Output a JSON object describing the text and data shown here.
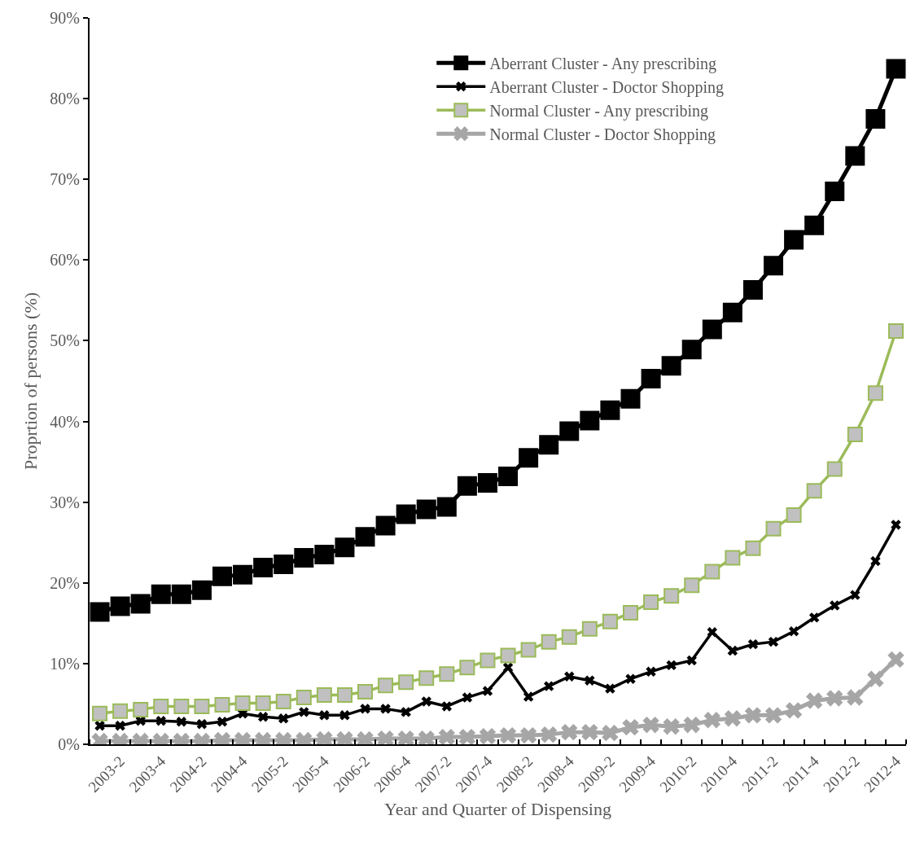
{
  "chart_data": {
    "type": "line",
    "xlabel": "Year and Quarter of Dispensing",
    "ylabel": "Proprtion of persons (%)",
    "categories": [
      null,
      "2003-2",
      null,
      "2003-4",
      null,
      "2004-2",
      null,
      "2004-4",
      null,
      "2005-2",
      null,
      "2005-4",
      null,
      "2006-2",
      null,
      "2006-4",
      null,
      "2007-2",
      null,
      "2007-4",
      null,
      "2008-2",
      null,
      "2008-4",
      null,
      "2009-2",
      null,
      "2009-4",
      null,
      "2010-2",
      null,
      "2010-4",
      null,
      "2011-2",
      null,
      "2011-4",
      null,
      "2012-2",
      null,
      "2012-4"
    ],
    "ylim": [
      0,
      90
    ],
    "yticks": [
      {
        "value": 0,
        "label": "0%"
      },
      {
        "value": 10,
        "label": "10%"
      },
      {
        "value": 20,
        "label": "20%"
      },
      {
        "value": 30,
        "label": "30%"
      },
      {
        "value": 40,
        "label": "40%"
      },
      {
        "value": 50,
        "label": "50%"
      },
      {
        "value": 60,
        "label": "60%"
      },
      {
        "value": 70,
        "label": "70%"
      },
      {
        "value": 80,
        "label": "80%"
      },
      {
        "value": 90,
        "label": "90%"
      }
    ],
    "grid": false,
    "legend": "top right",
    "series": [
      {
        "name": "Aberrant Cluster - Any prescribing",
        "color": "#000000",
        "marker": "square",
        "values": [
          16.4,
          17.1,
          17.4,
          18.6,
          18.6,
          19.1,
          20.8,
          21.0,
          21.9,
          22.3,
          23.1,
          23.5,
          24.4,
          25.7,
          27.1,
          28.5,
          29.1,
          29.4,
          32.0,
          32.4,
          33.2,
          35.5,
          37.1,
          38.8,
          40.1,
          41.4,
          42.8,
          45.3,
          46.9,
          48.9,
          51.4,
          53.5,
          56.3,
          59.3,
          62.5,
          64.3,
          68.5,
          72.9,
          77.5,
          83.7
        ]
      },
      {
        "name": "Aberrant Cluster - Doctor Shopping",
        "color": "#000000",
        "marker": "cross",
        "values": [
          2.3,
          2.3,
          2.9,
          2.9,
          2.8,
          2.5,
          2.8,
          3.8,
          3.4,
          3.2,
          4.0,
          3.6,
          3.6,
          4.4,
          4.4,
          4.0,
          5.3,
          4.7,
          5.8,
          6.6,
          9.5,
          5.9,
          7.2,
          8.4,
          7.9,
          6.9,
          8.1,
          9.0,
          9.8,
          10.4,
          13.9,
          11.6,
          12.4,
          12.7,
          14.0,
          15.7,
          17.2,
          18.5,
          22.7,
          27.2
        ]
      },
      {
        "name": "Normal Cluster - Any prescribing",
        "color": "#9bbb59",
        "marker": "square",
        "values": [
          3.8,
          4.1,
          4.3,
          4.7,
          4.7,
          4.7,
          4.9,
          5.1,
          5.1,
          5.3,
          5.8,
          6.1,
          6.1,
          6.5,
          7.3,
          7.7,
          8.2,
          8.7,
          9.5,
          10.4,
          11.0,
          11.7,
          12.7,
          13.3,
          14.3,
          15.2,
          16.3,
          17.6,
          18.4,
          19.7,
          21.4,
          23.1,
          24.3,
          26.7,
          28.4,
          31.4,
          34.1,
          38.4,
          43.5,
          51.2
        ]
      },
      {
        "name": "Normal Cluster - Doctor Shopping",
        "color": "#a6a6a6",
        "marker": "cross",
        "values": [
          0.4,
          0.4,
          0.4,
          0.4,
          0.4,
          0.4,
          0.5,
          0.5,
          0.5,
          0.5,
          0.5,
          0.6,
          0.6,
          0.6,
          0.7,
          0.7,
          0.7,
          0.9,
          0.9,
          1.0,
          1.1,
          1.1,
          1.2,
          1.5,
          1.5,
          1.4,
          2.1,
          2.4,
          2.2,
          2.4,
          3.0,
          3.2,
          3.6,
          3.6,
          4.2,
          5.4,
          5.7,
          5.8,
          8.1,
          10.5
        ]
      }
    ]
  }
}
